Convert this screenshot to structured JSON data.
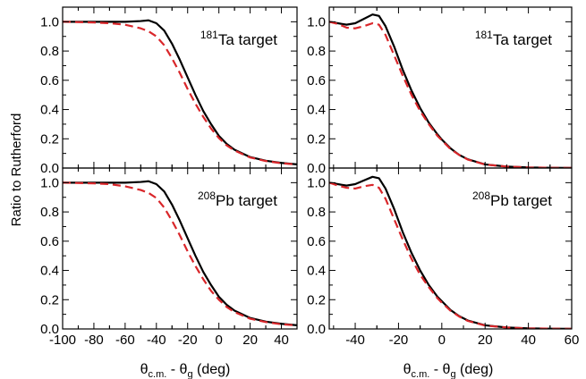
{
  "figure": {
    "ylabel": "Ratio to Rutherford",
    "xlabel_theta": "θ",
    "xlabel_cm": "c.m.",
    "xlabel_dash": " - θ",
    "xlabel_g": "g",
    "xlabel_unit": " (deg)"
  },
  "colors": {
    "solid": "#000000",
    "dashed": "#d9262a",
    "axis": "#000000"
  },
  "chart_data": [
    {
      "type": "line",
      "panel": "top-left",
      "annotation": {
        "mass": "181",
        "text": "Ta target"
      },
      "xlim": [
        -100,
        50
      ],
      "ylim": [
        0,
        1.1
      ],
      "xticks": [
        -100,
        -80,
        -60,
        -40,
        -20,
        0,
        20,
        40
      ],
      "yticks": [
        0.0,
        0.2,
        0.4,
        0.6,
        0.8,
        1.0
      ],
      "series": [
        {
          "style": "solid",
          "x": [
            -100,
            -80,
            -60,
            -50,
            -45,
            -40,
            -35,
            -30,
            -25,
            -20,
            -15,
            -10,
            -5,
            0,
            5,
            10,
            20,
            30,
            40,
            50
          ],
          "y": [
            1.0,
            1.0,
            1.0,
            1.005,
            1.01,
            0.99,
            0.94,
            0.85,
            0.74,
            0.62,
            0.5,
            0.39,
            0.3,
            0.22,
            0.165,
            0.125,
            0.075,
            0.05,
            0.035,
            0.025
          ]
        },
        {
          "style": "dashed",
          "x": [
            -100,
            -80,
            -70,
            -60,
            -50,
            -45,
            -40,
            -35,
            -30,
            -25,
            -20,
            -15,
            -10,
            -5,
            0,
            5,
            10,
            20,
            30,
            40,
            50
          ],
          "y": [
            1.0,
            0.995,
            0.99,
            0.98,
            0.955,
            0.935,
            0.9,
            0.84,
            0.75,
            0.65,
            0.54,
            0.44,
            0.35,
            0.27,
            0.205,
            0.155,
            0.12,
            0.072,
            0.048,
            0.033,
            0.024
          ]
        }
      ]
    },
    {
      "type": "line",
      "panel": "top-right",
      "annotation": {
        "mass": "181",
        "text": "Ta target"
      },
      "xlim": [
        -52,
        60
      ],
      "ylim": [
        0,
        1.1
      ],
      "xticks": [
        -40,
        -20,
        0,
        20,
        40,
        60
      ],
      "yticks": [
        0.0,
        0.2,
        0.4,
        0.6,
        0.8,
        1.0
      ],
      "series": [
        {
          "style": "solid",
          "x": [
            -52,
            -48,
            -44,
            -40,
            -36,
            -32,
            -29,
            -26,
            -22,
            -18,
            -14,
            -10,
            -6,
            -2,
            0,
            4,
            8,
            12,
            20,
            30,
            40,
            50,
            60
          ],
          "y": [
            1.0,
            0.99,
            0.98,
            0.99,
            1.02,
            1.05,
            1.04,
            0.97,
            0.83,
            0.67,
            0.53,
            0.41,
            0.31,
            0.23,
            0.195,
            0.135,
            0.09,
            0.06,
            0.025,
            0.01,
            0.004,
            0.002,
            0.001
          ]
        },
        {
          "style": "dashed",
          "x": [
            -52,
            -48,
            -44,
            -40,
            -36,
            -32,
            -29,
            -26,
            -22,
            -18,
            -14,
            -10,
            -6,
            -2,
            0,
            4,
            8,
            12,
            20,
            30,
            40,
            50,
            60
          ],
          "y": [
            1.0,
            0.985,
            0.96,
            0.955,
            0.97,
            0.99,
            0.98,
            0.91,
            0.77,
            0.63,
            0.5,
            0.39,
            0.3,
            0.22,
            0.19,
            0.13,
            0.09,
            0.058,
            0.024,
            0.01,
            0.004,
            0.002,
            0.001
          ]
        }
      ]
    },
    {
      "type": "line",
      "panel": "bottom-left",
      "annotation": {
        "mass": "208",
        "text": "Pb target"
      },
      "xlim": [
        -100,
        50
      ],
      "ylim": [
        0,
        1.1
      ],
      "xticks": [
        -100,
        -80,
        -60,
        -40,
        -20,
        0,
        20,
        40
      ],
      "yticks": [
        0.0,
        0.2,
        0.4,
        0.6,
        0.8,
        1.0
      ],
      "series": [
        {
          "style": "solid",
          "x": [
            -100,
            -80,
            -60,
            -50,
            -45,
            -40,
            -35,
            -30,
            -25,
            -20,
            -15,
            -10,
            -5,
            0,
            5,
            10,
            20,
            30,
            40,
            50
          ],
          "y": [
            1.0,
            1.0,
            1.0,
            1.005,
            1.01,
            0.99,
            0.94,
            0.85,
            0.74,
            0.62,
            0.5,
            0.39,
            0.3,
            0.22,
            0.165,
            0.125,
            0.075,
            0.05,
            0.035,
            0.025
          ]
        },
        {
          "style": "dashed",
          "x": [
            -100,
            -80,
            -70,
            -60,
            -50,
            -45,
            -40,
            -35,
            -30,
            -25,
            -20,
            -15,
            -10,
            -5,
            0,
            5,
            10,
            20,
            30,
            40,
            50
          ],
          "y": [
            1.0,
            0.995,
            0.99,
            0.975,
            0.95,
            0.93,
            0.895,
            0.83,
            0.74,
            0.64,
            0.53,
            0.43,
            0.34,
            0.26,
            0.2,
            0.15,
            0.115,
            0.07,
            0.047,
            0.032,
            0.024
          ]
        }
      ]
    },
    {
      "type": "line",
      "panel": "bottom-right",
      "annotation": {
        "mass": "208",
        "text": "Pb target"
      },
      "xlim": [
        -52,
        60
      ],
      "ylim": [
        0,
        1.1
      ],
      "xticks": [
        -40,
        -20,
        0,
        20,
        40,
        60
      ],
      "yticks": [
        0.0,
        0.2,
        0.4,
        0.6,
        0.8,
        1.0
      ],
      "series": [
        {
          "style": "solid",
          "x": [
            -52,
            -48,
            -44,
            -40,
            -36,
            -32,
            -29,
            -26,
            -22,
            -18,
            -14,
            -10,
            -6,
            -2,
            0,
            4,
            8,
            12,
            20,
            30,
            40,
            50,
            60
          ],
          "y": [
            1.0,
            0.99,
            0.98,
            0.99,
            1.015,
            1.04,
            1.03,
            0.96,
            0.82,
            0.66,
            0.52,
            0.4,
            0.3,
            0.22,
            0.19,
            0.13,
            0.088,
            0.058,
            0.025,
            0.01,
            0.004,
            0.002,
            0.001
          ]
        },
        {
          "style": "dashed",
          "x": [
            -52,
            -48,
            -44,
            -40,
            -36,
            -32,
            -29,
            -26,
            -22,
            -18,
            -14,
            -10,
            -6,
            -2,
            0,
            4,
            8,
            12,
            20,
            30,
            40,
            50,
            60
          ],
          "y": [
            1.0,
            0.98,
            0.965,
            0.96,
            0.975,
            0.985,
            0.965,
            0.89,
            0.75,
            0.61,
            0.48,
            0.37,
            0.285,
            0.21,
            0.18,
            0.125,
            0.085,
            0.055,
            0.023,
            0.01,
            0.004,
            0.002,
            0.001
          ]
        }
      ]
    }
  ]
}
